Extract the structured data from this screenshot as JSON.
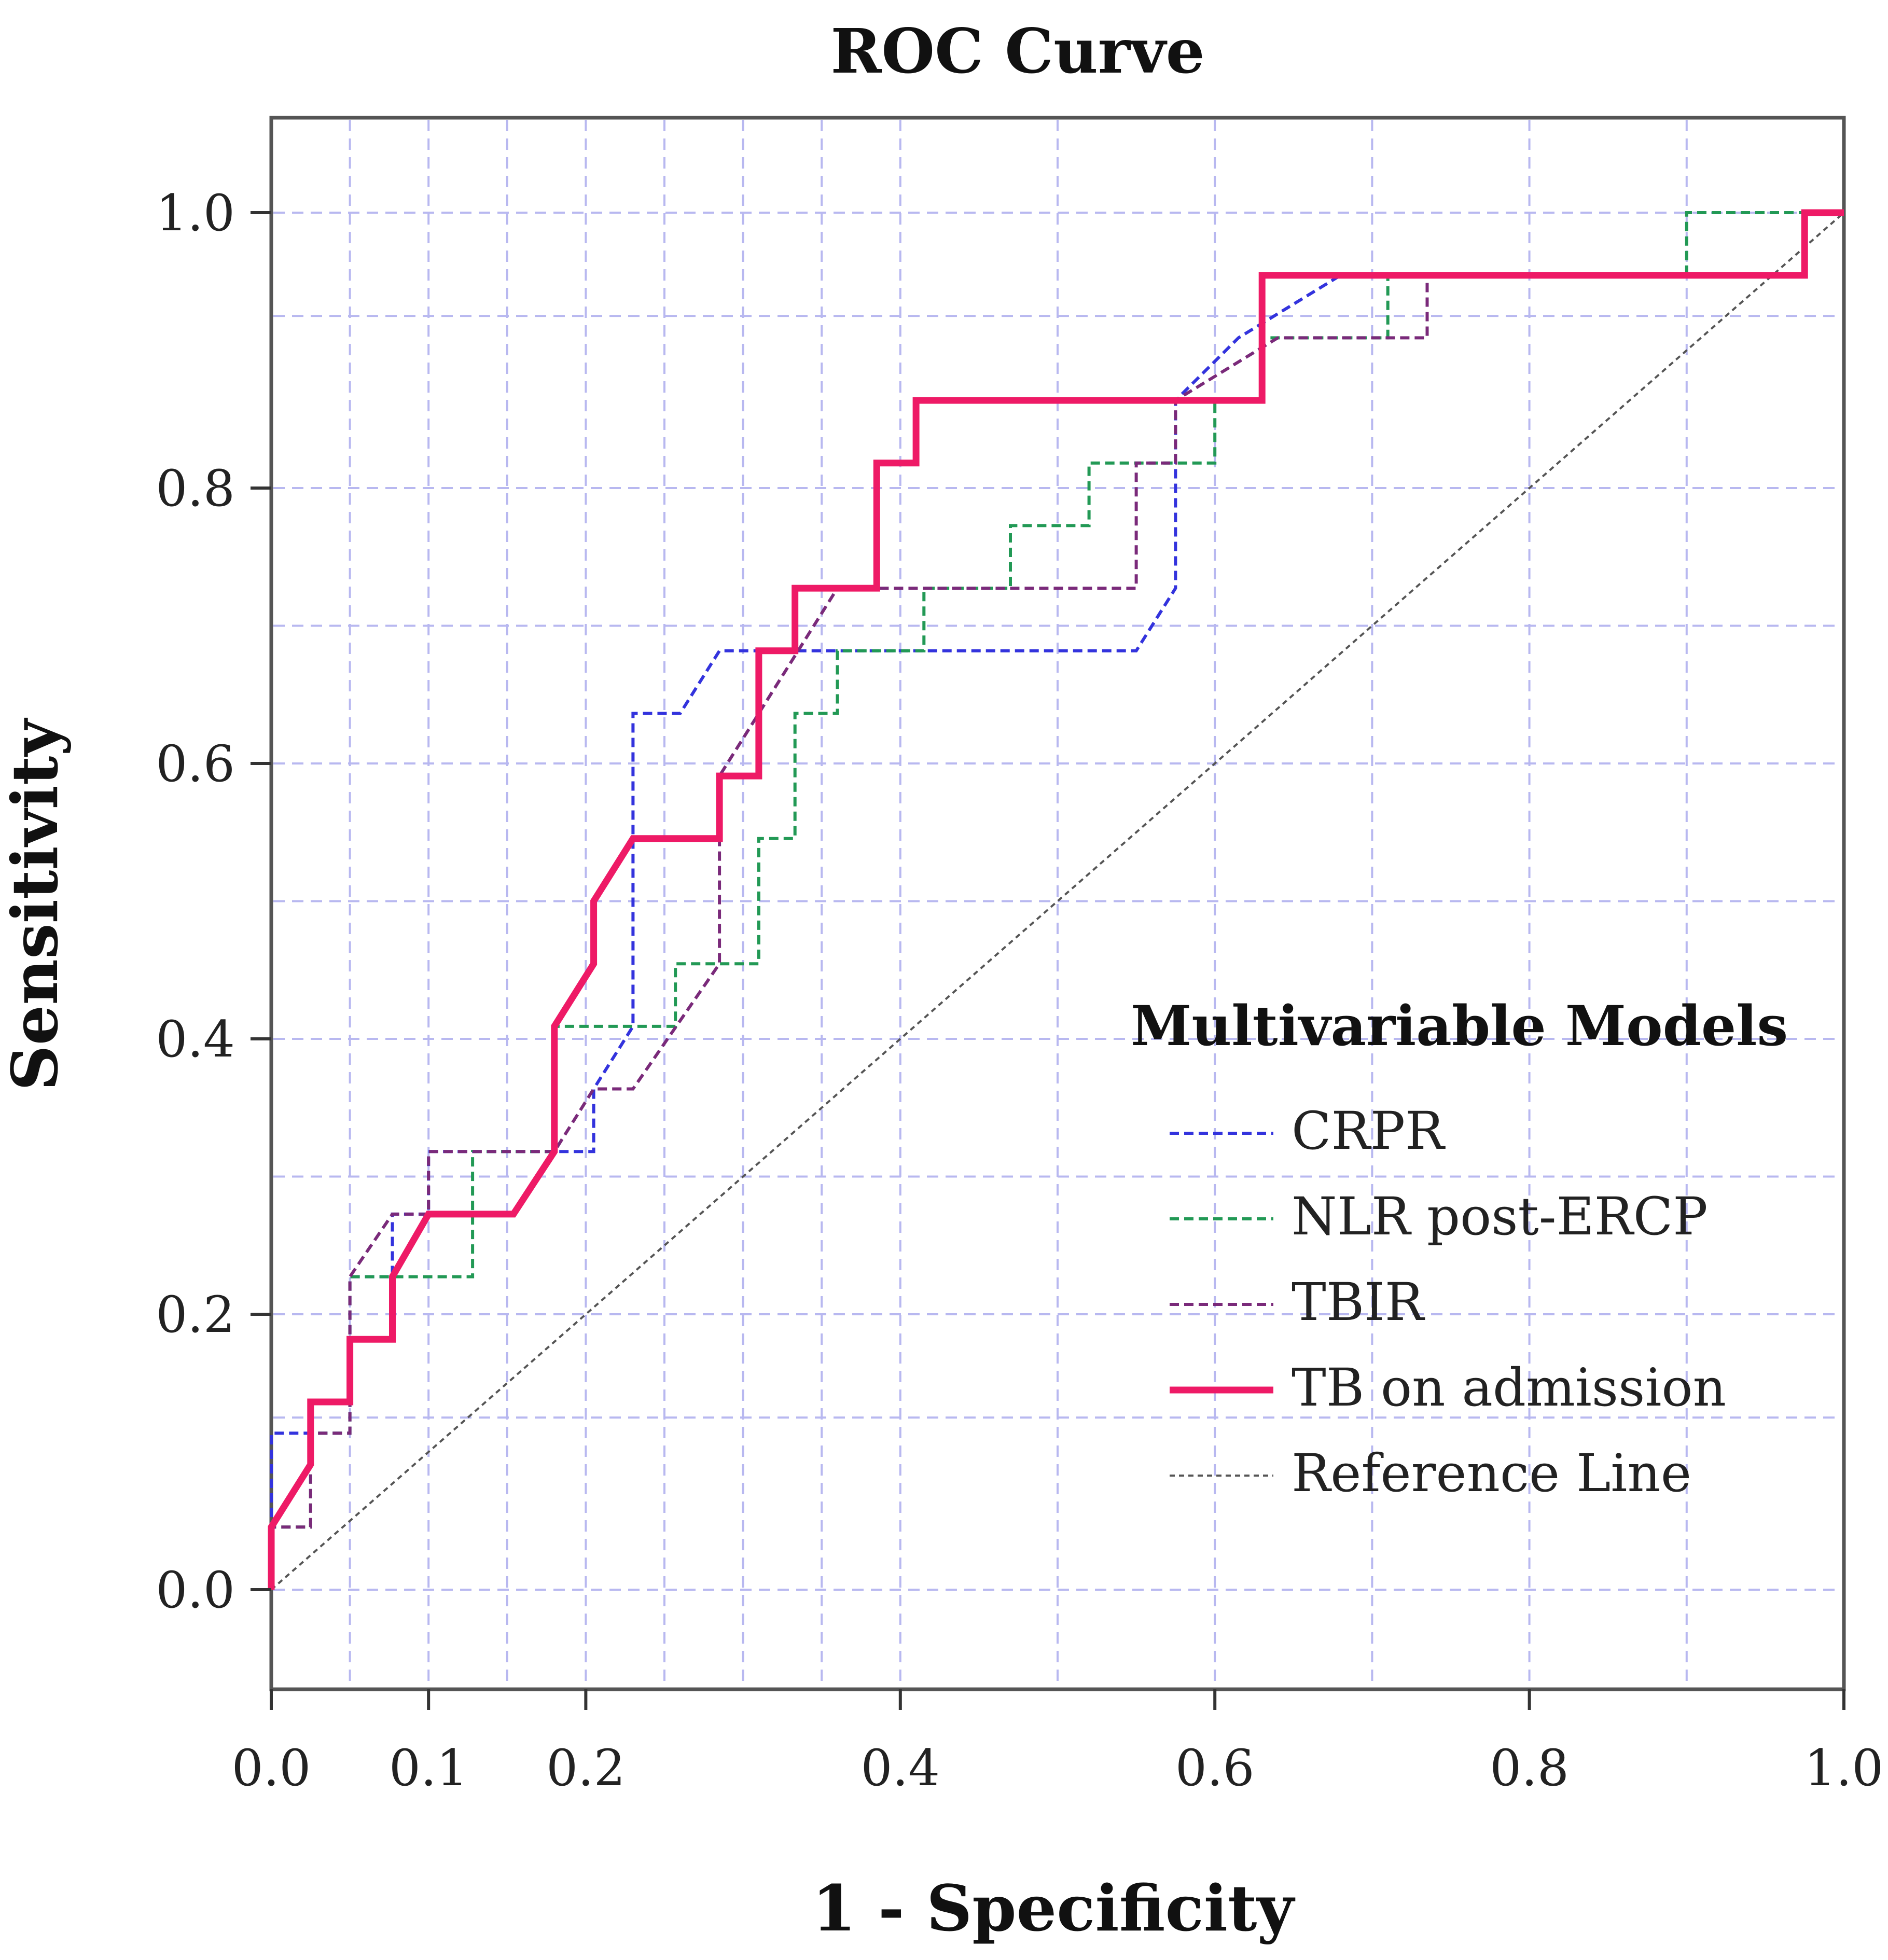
{
  "chart_data": {
    "type": "line",
    "title": "ROC Curve",
    "xlabel": "1 - Specificity",
    "ylabel": "Sensitivity",
    "xlim": [
      0.0,
      1.0
    ],
    "ylim": [
      -0.05,
      1.07
    ],
    "x_ticks": [
      "0.0",
      "0.1",
      "0.2",
      "0.4",
      "0.6",
      "0.8",
      "1.0"
    ],
    "x_tick_values": [
      0.0,
      0.1,
      0.2,
      0.4,
      0.6,
      0.8,
      1.0
    ],
    "y_ticks": [
      "0.0",
      "0.2",
      "0.4",
      "0.6",
      "0.8",
      "1.0"
    ],
    "y_tick_values": [
      0.0,
      0.2,
      0.4,
      0.6,
      0.8,
      1.0
    ],
    "grid": true,
    "legend": {
      "title": "Multivariable Models",
      "position": "right"
    },
    "series": [
      {
        "name": "CRPR",
        "color": "#3333dd",
        "style": "dashed",
        "points": [
          [
            0.0,
            0.0
          ],
          [
            0.0,
            0.125
          ],
          [
            0.05,
            0.125
          ],
          [
            0.05,
            0.25
          ],
          [
            0.077,
            0.25
          ],
          [
            0.077,
            0.3
          ],
          [
            0.1,
            0.3
          ],
          [
            0.1,
            0.35
          ],
          [
            0.205,
            0.35
          ],
          [
            0.205,
            0.4
          ],
          [
            0.23,
            0.45
          ],
          [
            0.23,
            0.7
          ],
          [
            0.26,
            0.7
          ],
          [
            0.285,
            0.75
          ],
          [
            0.55,
            0.75
          ],
          [
            0.575,
            0.8
          ],
          [
            0.575,
            0.95
          ],
          [
            0.615,
            1.0
          ],
          [
            0.68,
            1.05
          ]
        ]
      },
      {
        "name": "NLR post-ERCP",
        "color": "#229955",
        "style": "dashed",
        "points": [
          [
            0.0,
            0.0
          ],
          [
            0.0,
            0.05
          ],
          [
            0.025,
            0.05
          ],
          [
            0.025,
            0.125
          ],
          [
            0.05,
            0.125
          ],
          [
            0.05,
            0.25
          ],
          [
            0.128,
            0.25
          ],
          [
            0.128,
            0.35
          ],
          [
            0.18,
            0.35
          ],
          [
            0.18,
            0.45
          ],
          [
            0.257,
            0.45
          ],
          [
            0.257,
            0.5
          ],
          [
            0.31,
            0.5
          ],
          [
            0.31,
            0.6
          ],
          [
            0.333,
            0.6
          ],
          [
            0.333,
            0.7
          ],
          [
            0.36,
            0.7
          ],
          [
            0.36,
            0.75
          ],
          [
            0.415,
            0.75
          ],
          [
            0.415,
            0.8
          ],
          [
            0.47,
            0.8
          ],
          [
            0.47,
            0.85
          ],
          [
            0.52,
            0.85
          ],
          [
            0.52,
            0.9
          ],
          [
            0.6,
            0.9
          ],
          [
            0.6,
            0.95
          ],
          [
            0.63,
            0.95
          ],
          [
            0.63,
            1.0
          ],
          [
            0.71,
            1.0
          ],
          [
            0.71,
            1.05
          ],
          [
            0.9,
            1.05
          ],
          [
            0.9,
            1.1
          ],
          [
            1.0,
            1.1
          ]
        ]
      },
      {
        "name": "TBIR",
        "color": "#7a2a7a",
        "style": "dashed",
        "points": [
          [
            0.0,
            0.0
          ],
          [
            0.0,
            0.05
          ],
          [
            0.025,
            0.05
          ],
          [
            0.025,
            0.125
          ],
          [
            0.05,
            0.125
          ],
          [
            0.05,
            0.25
          ],
          [
            0.077,
            0.3
          ],
          [
            0.1,
            0.3
          ],
          [
            0.1,
            0.35
          ],
          [
            0.18,
            0.35
          ],
          [
            0.205,
            0.4
          ],
          [
            0.23,
            0.4
          ],
          [
            0.285,
            0.5
          ],
          [
            0.285,
            0.65
          ],
          [
            0.31,
            0.7
          ],
          [
            0.36,
            0.8
          ],
          [
            0.55,
            0.8
          ],
          [
            0.55,
            0.9
          ],
          [
            0.575,
            0.9
          ],
          [
            0.575,
            0.95
          ],
          [
            0.64,
            1.0
          ],
          [
            0.735,
            1.0
          ],
          [
            0.735,
            1.05
          ]
        ]
      },
      {
        "name": "TB on admission",
        "color": "#ee1a66",
        "style": "solid",
        "points": [
          [
            0.0,
            0.0
          ],
          [
            0.0,
            0.05
          ],
          [
            0.025,
            0.1
          ],
          [
            0.025,
            0.15
          ],
          [
            0.05,
            0.15
          ],
          [
            0.05,
            0.2
          ],
          [
            0.077,
            0.2
          ],
          [
            0.077,
            0.25
          ],
          [
            0.1,
            0.3
          ],
          [
            0.154,
            0.3
          ],
          [
            0.18,
            0.35
          ],
          [
            0.18,
            0.45
          ],
          [
            0.205,
            0.5
          ],
          [
            0.205,
            0.55
          ],
          [
            0.23,
            0.6
          ],
          [
            0.285,
            0.6
          ],
          [
            0.285,
            0.65
          ],
          [
            0.31,
            0.65
          ],
          [
            0.31,
            0.75
          ],
          [
            0.333,
            0.75
          ],
          [
            0.333,
            0.8
          ],
          [
            0.385,
            0.8
          ],
          [
            0.385,
            0.9
          ],
          [
            0.41,
            0.9
          ],
          [
            0.41,
            0.95
          ],
          [
            0.63,
            0.95
          ],
          [
            0.63,
            1.05
          ],
          [
            0.975,
            1.05
          ],
          [
            0.975,
            1.1
          ],
          [
            1.0,
            1.1
          ]
        ]
      },
      {
        "name": "Reference Line",
        "color": "#555555",
        "style": "dotted",
        "points": [
          [
            0.0,
            0.0
          ],
          [
            1.0,
            1.0
          ]
        ]
      }
    ]
  }
}
